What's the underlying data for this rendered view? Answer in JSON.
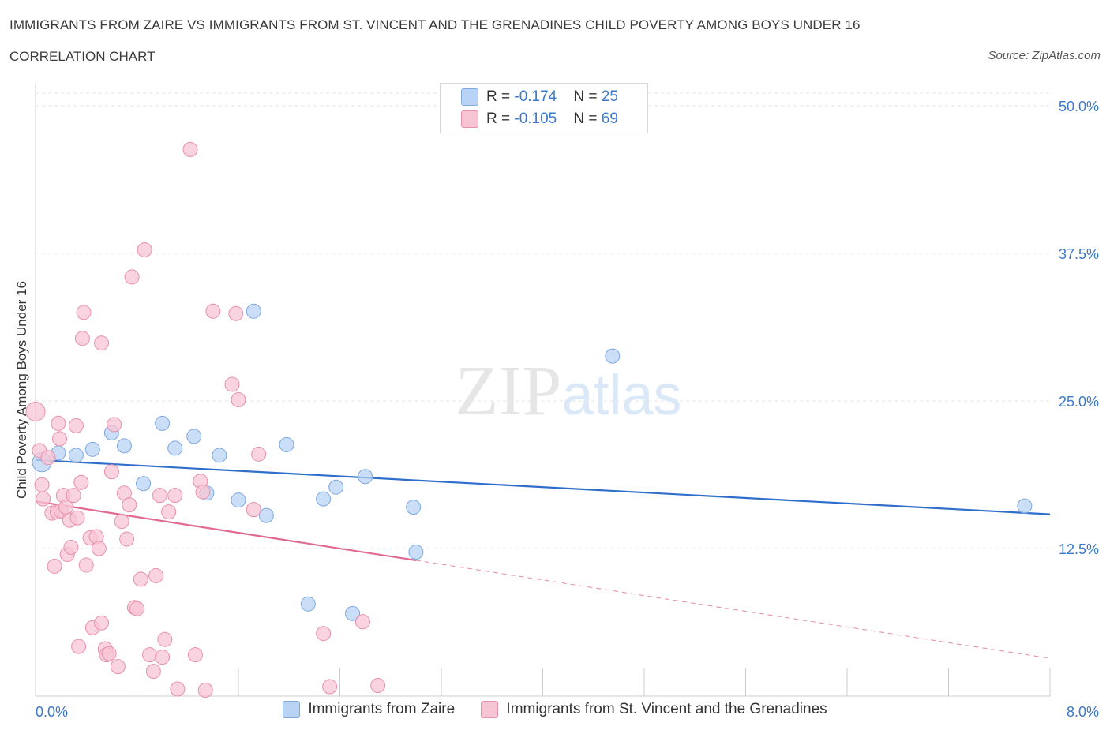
{
  "chart_data": {
    "type": "scatter",
    "title": "IMMIGRANTS FROM ZAIRE VS IMMIGRANTS FROM ST. VINCENT AND THE GRENADINES CHILD POVERTY AMONG BOYS UNDER 16",
    "subtitle": "CORRELATION CHART",
    "source": "Source: ZipAtlas.com",
    "ylabel": "Child Poverty Among Boys Under 16",
    "xlabel": "",
    "xlim": [
      0,
      8
    ],
    "ylim": [
      0,
      50
    ],
    "x_tick_labels": [
      "0.0%",
      "8.0%"
    ],
    "y_tick_labels": [
      "12.5%",
      "25.0%",
      "37.5%",
      "50.0%"
    ],
    "y_ticks": [
      12.5,
      25.0,
      37.5,
      50.0
    ],
    "watermark": "ZIPatlas",
    "colors": {
      "zaire_fill": "#b8d3f5",
      "zaire_stroke": "#7ea9dd",
      "zaire_line": "#2f6fcb",
      "svg_fill": "#f7c4d4",
      "svg_stroke": "#e890ac",
      "svg_line": "#e06a93",
      "axis_text": "#3a78c9"
    },
    "legend": {
      "zaire": {
        "r_label": "R = ",
        "r_value": "-0.174",
        "n_label": "N = ",
        "n_value": "25"
      },
      "svg": {
        "r_label": "R = ",
        "r_value": "-0.105",
        "n_label": "N = ",
        "n_value": "69"
      }
    },
    "series": [
      {
        "name": "Immigrants from Zaire",
        "key": "zaire",
        "trend": {
          "x0": 0.0,
          "y0": 20.0,
          "x1": 8.0,
          "y1": 15.4
        },
        "points": [
          [
            0.05,
            19.8,
            12
          ],
          [
            0.18,
            20.6,
            9
          ],
          [
            0.32,
            20.4,
            9
          ],
          [
            0.45,
            20.9,
            9
          ],
          [
            0.6,
            22.3,
            9
          ],
          [
            0.7,
            21.2,
            9
          ],
          [
            0.85,
            18.0,
            9
          ],
          [
            1.0,
            23.1,
            9
          ],
          [
            1.1,
            21.0,
            9
          ],
          [
            1.25,
            22.0,
            9
          ],
          [
            1.35,
            17.2,
            9
          ],
          [
            1.45,
            20.4,
            9
          ],
          [
            1.6,
            16.6,
            9
          ],
          [
            1.72,
            32.6,
            9
          ],
          [
            1.82,
            15.3,
            9
          ],
          [
            1.98,
            21.3,
            9
          ],
          [
            2.15,
            7.8,
            9
          ],
          [
            2.27,
            16.7,
            9
          ],
          [
            2.37,
            17.7,
            9
          ],
          [
            2.5,
            7.0,
            9
          ],
          [
            2.6,
            18.6,
            9
          ],
          [
            2.98,
            16.0,
            9
          ],
          [
            3.0,
            12.2,
            9
          ],
          [
            4.55,
            28.8,
            9
          ],
          [
            7.8,
            16.1,
            9
          ]
        ]
      },
      {
        "name": "Immigrants from St. Vincent and the Grenadines",
        "key": "svg",
        "trend": {
          "x0": 0.0,
          "y0": 16.5,
          "x1": 3.0,
          "y1": 11.5
        },
        "trend_dash": {
          "x0": 3.0,
          "y0": 11.5,
          "x1": 8.0,
          "y1": 3.2
        },
        "points": [
          [
            0.0,
            24.1,
            12
          ],
          [
            0.03,
            20.8,
            9
          ],
          [
            0.05,
            17.9,
            9
          ],
          [
            0.06,
            16.7,
            9
          ],
          [
            0.1,
            20.2,
            9
          ],
          [
            0.13,
            15.5,
            9
          ],
          [
            0.15,
            11.0,
            9
          ],
          [
            0.17,
            15.6,
            9
          ],
          [
            0.18,
            23.1,
            9
          ],
          [
            0.19,
            21.8,
            9
          ],
          [
            0.2,
            15.7,
            9
          ],
          [
            0.22,
            17.0,
            9
          ],
          [
            0.24,
            16.0,
            9
          ],
          [
            0.25,
            12.0,
            9
          ],
          [
            0.27,
            14.9,
            9
          ],
          [
            0.28,
            12.6,
            9
          ],
          [
            0.3,
            17.0,
            9
          ],
          [
            0.32,
            22.9,
            9
          ],
          [
            0.33,
            15.1,
            9
          ],
          [
            0.34,
            4.2,
            9
          ],
          [
            0.36,
            18.1,
            9
          ],
          [
            0.37,
            30.3,
            9
          ],
          [
            0.38,
            32.5,
            9
          ],
          [
            0.4,
            11.1,
            9
          ],
          [
            0.43,
            13.4,
            9
          ],
          [
            0.45,
            5.8,
            9
          ],
          [
            0.48,
            13.5,
            9
          ],
          [
            0.5,
            12.5,
            9
          ],
          [
            0.52,
            29.9,
            9
          ],
          [
            0.52,
            6.2,
            9
          ],
          [
            0.55,
            4.0,
            9
          ],
          [
            0.56,
            3.5,
            9
          ],
          [
            0.58,
            3.6,
            9
          ],
          [
            0.6,
            19.0,
            9
          ],
          [
            0.62,
            23.0,
            9
          ],
          [
            0.65,
            2.5,
            9
          ],
          [
            0.68,
            14.8,
            9
          ],
          [
            0.7,
            17.2,
            9
          ],
          [
            0.72,
            13.3,
            9
          ],
          [
            0.74,
            16.2,
            9
          ],
          [
            0.76,
            35.5,
            9
          ],
          [
            0.78,
            7.5,
            9
          ],
          [
            0.8,
            7.4,
            9
          ],
          [
            0.83,
            9.9,
            9
          ],
          [
            0.86,
            37.8,
            9
          ],
          [
            0.9,
            3.5,
            9
          ],
          [
            0.93,
            2.1,
            9
          ],
          [
            0.95,
            10.2,
            9
          ],
          [
            0.98,
            17.0,
            9
          ],
          [
            1.0,
            3.3,
            9
          ],
          [
            1.02,
            4.8,
            9
          ],
          [
            1.05,
            15.6,
            9
          ],
          [
            1.1,
            17.0,
            9
          ],
          [
            1.12,
            0.6,
            9
          ],
          [
            1.22,
            46.3,
            9
          ],
          [
            1.26,
            3.5,
            9
          ],
          [
            1.3,
            18.2,
            9
          ],
          [
            1.32,
            17.3,
            9
          ],
          [
            1.34,
            0.5,
            9
          ],
          [
            1.4,
            32.6,
            9
          ],
          [
            1.55,
            26.4,
            9
          ],
          [
            1.58,
            32.4,
            9
          ],
          [
            1.6,
            25.1,
            9
          ],
          [
            1.72,
            15.8,
            9
          ],
          [
            1.76,
            20.5,
            9
          ],
          [
            2.27,
            5.3,
            9
          ],
          [
            2.32,
            0.8,
            9
          ],
          [
            2.58,
            6.3,
            9
          ],
          [
            2.7,
            0.9,
            9
          ]
        ]
      }
    ]
  }
}
